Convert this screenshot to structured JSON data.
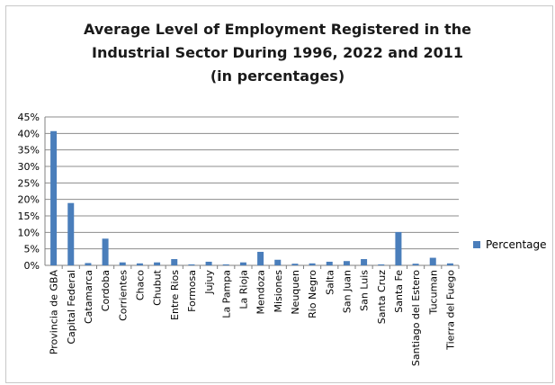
{
  "chart_data": {
    "type": "bar",
    "title_lines": [
      "Average Level of Employment Registered in the",
      "Industrial Sector During 1996, 2022 and 2011",
      "(in percentages)"
    ],
    "categories": [
      "Provincia de GBA",
      "Capital Federal",
      "Catamarca",
      "Cordoba",
      "Corrientes",
      "Chaco",
      "Chubut",
      "Entre Rios",
      "Formosa",
      "Jujuy",
      "La Pampa",
      "La Rioja",
      "Mendoza",
      "Misiones",
      "Neuquen",
      "Rio Negro",
      "Salta",
      "San Juan",
      "San Luis",
      "Santa Cruz",
      "Santa Fe",
      "Santiago del Estero",
      "Tucuman",
      "Tierra del Fuego"
    ],
    "series": [
      {
        "name": "Percentage",
        "values": [
          40.7,
          18.9,
          0.7,
          8.1,
          0.9,
          0.6,
          0.9,
          1.9,
          0.3,
          1.1,
          0.3,
          0.9,
          4.1,
          1.7,
          0.5,
          0.6,
          1.1,
          1.3,
          1.9,
          0.3,
          10.1,
          0.5,
          2.3,
          0.6
        ]
      }
    ],
    "ylim": [
      0,
      45
    ],
    "yticks": [
      0,
      5,
      10,
      15,
      20,
      25,
      30,
      35,
      40,
      45
    ],
    "ytick_labels": [
      "0%",
      "5%",
      "10%",
      "15%",
      "20%",
      "25%",
      "30%",
      "35%",
      "40%",
      "45%"
    ],
    "grid": true,
    "legend_position": "right",
    "colors": {
      "bar": "#4a7ebb",
      "grid": "#8c8c8c",
      "axis": "#808080"
    }
  }
}
